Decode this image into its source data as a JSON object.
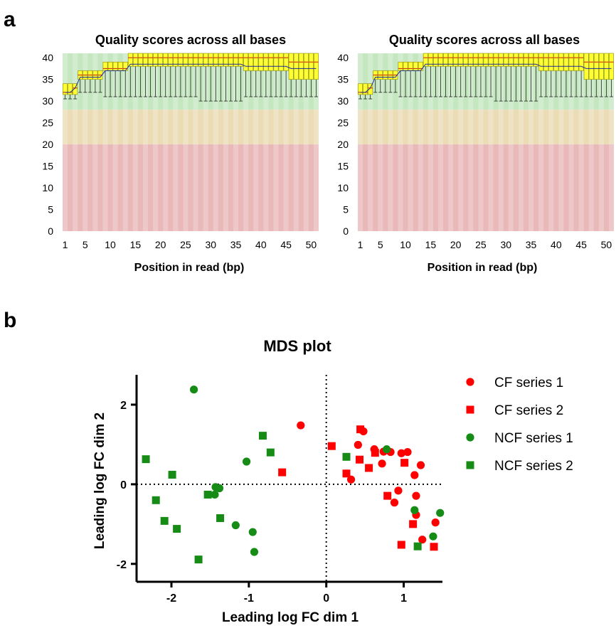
{
  "panels": {
    "a": "a",
    "b": "b"
  },
  "quality_zone_colors": {
    "good": "#c5e7c0",
    "ok": "#ebdcb5",
    "bad": "#e9b8b9",
    "box": "#ffff33",
    "box_edge": "#8a8a00",
    "median": "#c80000",
    "mean": "#1e2da0"
  },
  "series_colors": {
    "CF": "#ff0000",
    "NCF": "#168c16"
  },
  "chart_data": [
    {
      "type": "box",
      "title": "Quality scores across all bases",
      "xlabel": "Position in read (bp)",
      "ylabel": "",
      "ylim": [
        0,
        40
      ],
      "yticks": [
        "0",
        "5",
        "10",
        "15",
        "20",
        "25",
        "30",
        "35",
        "40"
      ],
      "xticks": [
        "1",
        "5",
        "10",
        "15",
        "20",
        "25",
        "30",
        "35",
        "40",
        "45",
        "50"
      ],
      "zones": [
        {
          "name": "good",
          "from": 28,
          "to": 41
        },
        {
          "name": "ok",
          "from": 20,
          "to": 28
        },
        {
          "name": "bad",
          "from": 0,
          "to": 20
        }
      ],
      "boxes": [
        {
          "positions": [
            1,
            2
          ],
          "lower_whisker": 30.5,
          "q1": 31.5,
          "median": 32,
          "q3": 34,
          "upper_whisker": 34,
          "mean": 32
        },
        {
          "positions": [
            3
          ],
          "lower_whisker": 30.5,
          "q1": 31.5,
          "median": 33,
          "q3": 34,
          "upper_whisker": 34,
          "mean": 33
        },
        {
          "positions": [
            4,
            5,
            6,
            7,
            8
          ],
          "lower_whisker": 32,
          "q1": 35,
          "median": 36,
          "q3": 37,
          "upper_whisker": 37,
          "mean": 35.5
        },
        {
          "positions": [
            9,
            10,
            11,
            12,
            13
          ],
          "lower_whisker": 31,
          "q1": 37,
          "median": 37.5,
          "q3": 39,
          "upper_whisker": 39,
          "mean": 37
        },
        {
          "positions": [
            14,
            15,
            16,
            17,
            18,
            19,
            20,
            21,
            22,
            23,
            24,
            25,
            26,
            27
          ],
          "lower_whisker": 31,
          "q1": 38,
          "median": 40,
          "q3": 41,
          "upper_whisker": 41,
          "mean": 38.5
        },
        {
          "positions": [
            28,
            29,
            30,
            31,
            32,
            33,
            34,
            35,
            36
          ],
          "lower_whisker": 30,
          "q1": 38,
          "median": 40,
          "q3": 41,
          "upper_whisker": 41,
          "mean": 38.5
        },
        {
          "positions": [
            37,
            38,
            39,
            40,
            41,
            42,
            43,
            44,
            45
          ],
          "lower_whisker": 31,
          "q1": 37,
          "median": 40,
          "q3": 41,
          "upper_whisker": 41,
          "mean": 38
        },
        {
          "positions": [
            46,
            47,
            48,
            49,
            50,
            51
          ],
          "lower_whisker": 31,
          "q1": 35,
          "median": 39,
          "q3": 41,
          "upper_whisker": 41,
          "mean": 37.5
        }
      ]
    },
    {
      "type": "box",
      "title": "Quality scores across all bases",
      "xlabel": "Position in read (bp)",
      "ylabel": "",
      "ylim": [
        0,
        40
      ],
      "yticks": [
        "0",
        "5",
        "10",
        "15",
        "20",
        "25",
        "30",
        "35",
        "40"
      ],
      "xticks": [
        "1",
        "5",
        "10",
        "15",
        "20",
        "25",
        "30",
        "35",
        "40",
        "45",
        "50"
      ],
      "zones": [
        {
          "name": "good",
          "from": 28,
          "to": 41
        },
        {
          "name": "ok",
          "from": 20,
          "to": 28
        },
        {
          "name": "bad",
          "from": 0,
          "to": 20
        }
      ],
      "boxes": [
        {
          "positions": [
            1,
            2
          ],
          "lower_whisker": 30.5,
          "q1": 31.5,
          "median": 32,
          "q3": 34,
          "upper_whisker": 34,
          "mean": 32
        },
        {
          "positions": [
            3
          ],
          "lower_whisker": 30.5,
          "q1": 31.5,
          "median": 33,
          "q3": 34,
          "upper_whisker": 34,
          "mean": 33
        },
        {
          "positions": [
            4,
            5,
            6,
            7,
            8
          ],
          "lower_whisker": 32,
          "q1": 35,
          "median": 36,
          "q3": 37,
          "upper_whisker": 37,
          "mean": 35.5
        },
        {
          "positions": [
            9,
            10,
            11,
            12,
            13
          ],
          "lower_whisker": 31,
          "q1": 37,
          "median": 37.5,
          "q3": 39,
          "upper_whisker": 39,
          "mean": 37
        },
        {
          "positions": [
            14,
            15,
            16,
            17,
            18,
            19,
            20,
            21,
            22,
            23,
            24,
            25,
            26,
            27
          ],
          "lower_whisker": 31,
          "q1": 38,
          "median": 40,
          "q3": 41,
          "upper_whisker": 41,
          "mean": 38.5
        },
        {
          "positions": [
            28,
            29,
            30,
            31,
            32,
            33,
            34,
            35,
            36
          ],
          "lower_whisker": 30,
          "q1": 38,
          "median": 40,
          "q3": 41,
          "upper_whisker": 41,
          "mean": 38.5
        },
        {
          "positions": [
            37,
            38,
            39,
            40,
            41,
            42,
            43,
            44,
            45
          ],
          "lower_whisker": 31,
          "q1": 37,
          "median": 40,
          "q3": 41,
          "upper_whisker": 41,
          "mean": 38
        },
        {
          "positions": [
            46,
            47,
            48,
            49,
            50,
            51
          ],
          "lower_whisker": 31,
          "q1": 35,
          "median": 39,
          "q3": 41,
          "upper_whisker": 41,
          "mean": 37.5
        }
      ]
    },
    {
      "type": "scatter",
      "title": "MDS plot",
      "xlabel": "Leading log FC dim 1",
      "ylabel": "Leading log FC dim 2",
      "xlim": [
        -2.45,
        1.5
      ],
      "ylim": [
        -2.45,
        2.75
      ],
      "xticks": [
        -2,
        -1,
        0,
        1
      ],
      "yticks": [
        -2,
        0,
        2
      ],
      "xtick_labels": [
        "-2",
        "-1",
        "0",
        "1"
      ],
      "ytick_labels": [
        "-2",
        "0",
        "2"
      ],
      "reference_lines": {
        "x": 0,
        "y": 0,
        "style": "dotted"
      },
      "legend_position": "right",
      "series": [
        {
          "name": "CF series 1",
          "marker": "circle",
          "color": "#ff0000",
          "points": [
            [
              -0.33,
              1.48
            ],
            [
              0.48,
              1.33
            ],
            [
              0.41,
              0.99
            ],
            [
              0.62,
              0.88
            ],
            [
              0.74,
              0.82
            ],
            [
              0.83,
              0.81
            ],
            [
              0.97,
              0.78
            ],
            [
              1.05,
              0.81
            ],
            [
              1.22,
              0.48
            ],
            [
              0.72,
              0.52
            ],
            [
              1.14,
              0.23
            ],
            [
              0.32,
              0.12
            ],
            [
              0.93,
              -0.16
            ],
            [
              1.16,
              -0.29
            ],
            [
              0.88,
              -0.46
            ],
            [
              1.16,
              -0.77
            ],
            [
              1.41,
              -0.96
            ],
            [
              1.24,
              -1.39
            ]
          ]
        },
        {
          "name": "CF series 2",
          "marker": "square",
          "color": "#ff0000",
          "points": [
            [
              0.07,
              0.96
            ],
            [
              0.44,
              1.38
            ],
            [
              0.63,
              0.79
            ],
            [
              0.43,
              0.62
            ],
            [
              1.01,
              0.54
            ],
            [
              0.55,
              0.41
            ],
            [
              -0.57,
              0.3
            ],
            [
              0.26,
              0.27
            ],
            [
              0.79,
              -0.29
            ],
            [
              0.97,
              -1.52
            ],
            [
              1.39,
              -1.57
            ],
            [
              1.12,
              -1.0
            ]
          ]
        },
        {
          "name": "NCF series 1",
          "marker": "circle",
          "color": "#168c16",
          "points": [
            [
              -1.71,
              2.38
            ],
            [
              -1.03,
              0.57
            ],
            [
              -1.38,
              -0.1
            ],
            [
              -1.43,
              -0.07
            ],
            [
              -1.44,
              -0.26
            ],
            [
              -1.17,
              -1.03
            ],
            [
              -0.95,
              -1.2
            ],
            [
              -0.93,
              -1.7
            ],
            [
              0.78,
              0.88
            ],
            [
              1.14,
              -0.65
            ],
            [
              1.47,
              -0.72
            ],
            [
              1.38,
              -1.31
            ]
          ]
        },
        {
          "name": "NCF series 2",
          "marker": "square",
          "color": "#168c16",
          "points": [
            [
              -2.33,
              0.63
            ],
            [
              -1.99,
              0.24
            ],
            [
              -2.2,
              -0.4
            ],
            [
              -2.09,
              -0.92
            ],
            [
              -1.93,
              -1.12
            ],
            [
              -1.53,
              -0.26
            ],
            [
              -1.65,
              -1.89
            ],
            [
              -1.37,
              -0.85
            ],
            [
              -0.82,
              1.22
            ],
            [
              -0.72,
              0.8
            ],
            [
              0.26,
              0.69
            ],
            [
              1.18,
              -1.56
            ]
          ]
        }
      ]
    }
  ]
}
